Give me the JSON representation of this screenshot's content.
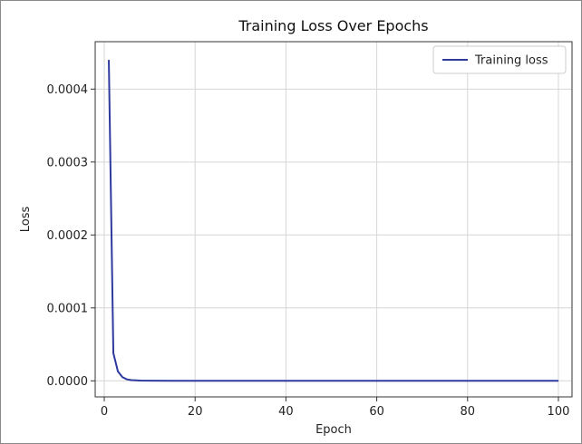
{
  "chart_data": {
    "type": "line",
    "title": "Training Loss Over Epochs",
    "xlabel": "Epoch",
    "ylabel": "Loss",
    "xlim": [
      -2,
      103
    ],
    "ylim": [
      -2.2e-05,
      0.000465
    ],
    "x_ticks": [
      0,
      20,
      40,
      60,
      80,
      100
    ],
    "x_tick_labels": [
      "0",
      "20",
      "40",
      "60",
      "80",
      "100"
    ],
    "y_ticks": [
      0,
      0.0001,
      0.0002,
      0.0003,
      0.0004
    ],
    "y_tick_labels": [
      "0.0000",
      "0.0001",
      "0.0002",
      "0.0003",
      "0.0004"
    ],
    "grid": true,
    "legend": "top-right",
    "series": [
      {
        "name": "Training loss",
        "color": "#2f3a9e",
        "x": [
          1,
          2,
          3,
          4,
          5,
          6,
          8,
          10,
          15,
          20,
          30,
          40,
          50,
          60,
          70,
          80,
          90,
          100
        ],
        "y": [
          0.00044,
          3.8e-05,
          1.3e-05,
          5e-06,
          2e-06,
          1e-06,
          4e-07,
          2e-07,
          1e-07,
          1e-07,
          1e-07,
          1e-07,
          1e-07,
          1e-07,
          1e-07,
          1e-07,
          1e-07,
          1e-07
        ]
      }
    ]
  },
  "colors": {
    "grid": "#d6d6d6",
    "axis": "#333333",
    "frame": "#8a8a8a"
  }
}
